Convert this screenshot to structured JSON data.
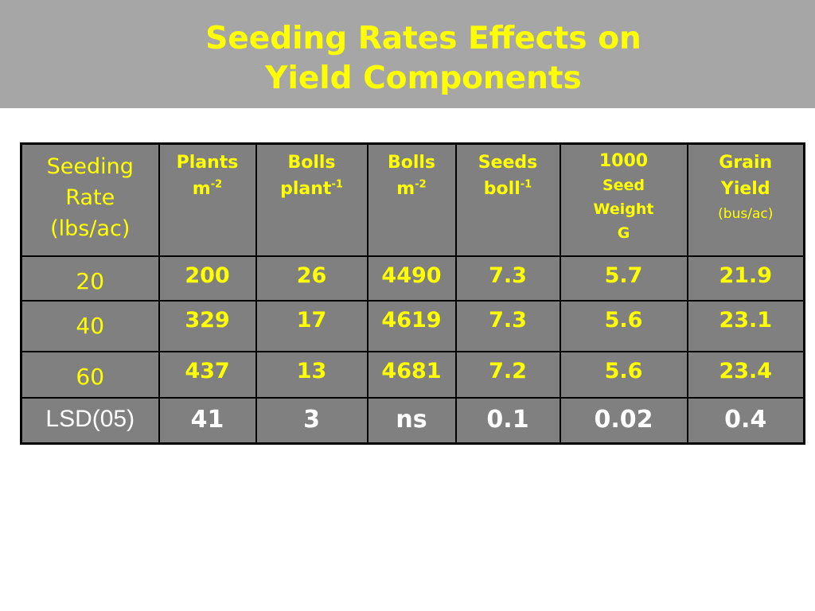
{
  "title": {
    "line1": "Seeding Rates Effects on",
    "line2": "Yield Components"
  },
  "colors": {
    "title_band": "#a6a6a6",
    "title_text": "#ffff00",
    "table_bg": "#808080",
    "cell_text": "#ffff00",
    "lsd_text": "#ffffff",
    "border": "#000000"
  },
  "table": {
    "headers": [
      {
        "lines": [
          "Seeding",
          "Rate",
          "(lbs/ac)"
        ]
      },
      {
        "main": "Plants",
        "unit": "m",
        "sup": "-2"
      },
      {
        "main": "Bolls",
        "unit": "plant",
        "sup": "-1"
      },
      {
        "main": "Bolls",
        "unit": "m",
        "sup": "-2"
      },
      {
        "main": "Seeds",
        "unit": "boll",
        "sup": "-1"
      },
      {
        "lines": [
          "1000",
          "Seed",
          "Weight",
          "G"
        ]
      },
      {
        "lines": [
          "Grain",
          "Yield",
          "(bus/ac)"
        ]
      }
    ],
    "rows": [
      {
        "label": "20",
        "values": [
          "200",
          "26",
          "4490",
          "7.3",
          "5.7",
          "21.9"
        ]
      },
      {
        "label": "40",
        "values": [
          "329",
          "17",
          "4619",
          "7.3",
          "5.6",
          "23.1"
        ]
      },
      {
        "label": "60",
        "values": [
          "437",
          "13",
          "4681",
          "7.2",
          "5.6",
          "23.4"
        ]
      },
      {
        "label": "LSD(05)",
        "values": [
          "41",
          "3",
          "ns",
          "0.1",
          "0.02",
          "0.4"
        ]
      }
    ]
  }
}
